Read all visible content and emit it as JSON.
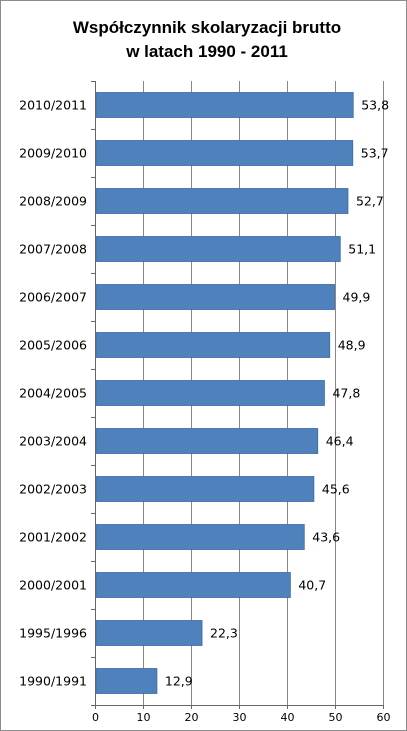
{
  "chart_data": {
    "type": "bar",
    "orientation": "horizontal",
    "title": [
      "Współczynnik skolaryzacji brutto",
      "w latach 1990 - 2011"
    ],
    "categories": [
      "2010/2011",
      "2009/2010",
      "2008/2009",
      "2007/2008",
      "2006/2007",
      "2005/2006",
      "2004/2005",
      "2003/2004",
      "2002/2003",
      "2001/2002",
      "2000/2001",
      "1995/1996",
      "1990/1991"
    ],
    "values": [
      53.8,
      53.7,
      52.7,
      51.1,
      49.9,
      48.9,
      47.8,
      46.4,
      45.6,
      43.6,
      40.7,
      22.3,
      12.9
    ],
    "value_labels": [
      "53,8",
      "53,7",
      "52,7",
      "51,1",
      "49,9",
      "48,9",
      "47,8",
      "46,4",
      "45,6",
      "43,6",
      "40,7",
      "22,3",
      "12,9"
    ],
    "xlim": [
      0,
      60
    ],
    "x_ticks": [
      "0",
      "10",
      "20",
      "30",
      "40",
      "50",
      "60"
    ],
    "grid": true,
    "legend": "none",
    "bar_color": "#4f81bd",
    "bar_edge_color": "#3a6aa6",
    "grid_color": "#888888"
  }
}
